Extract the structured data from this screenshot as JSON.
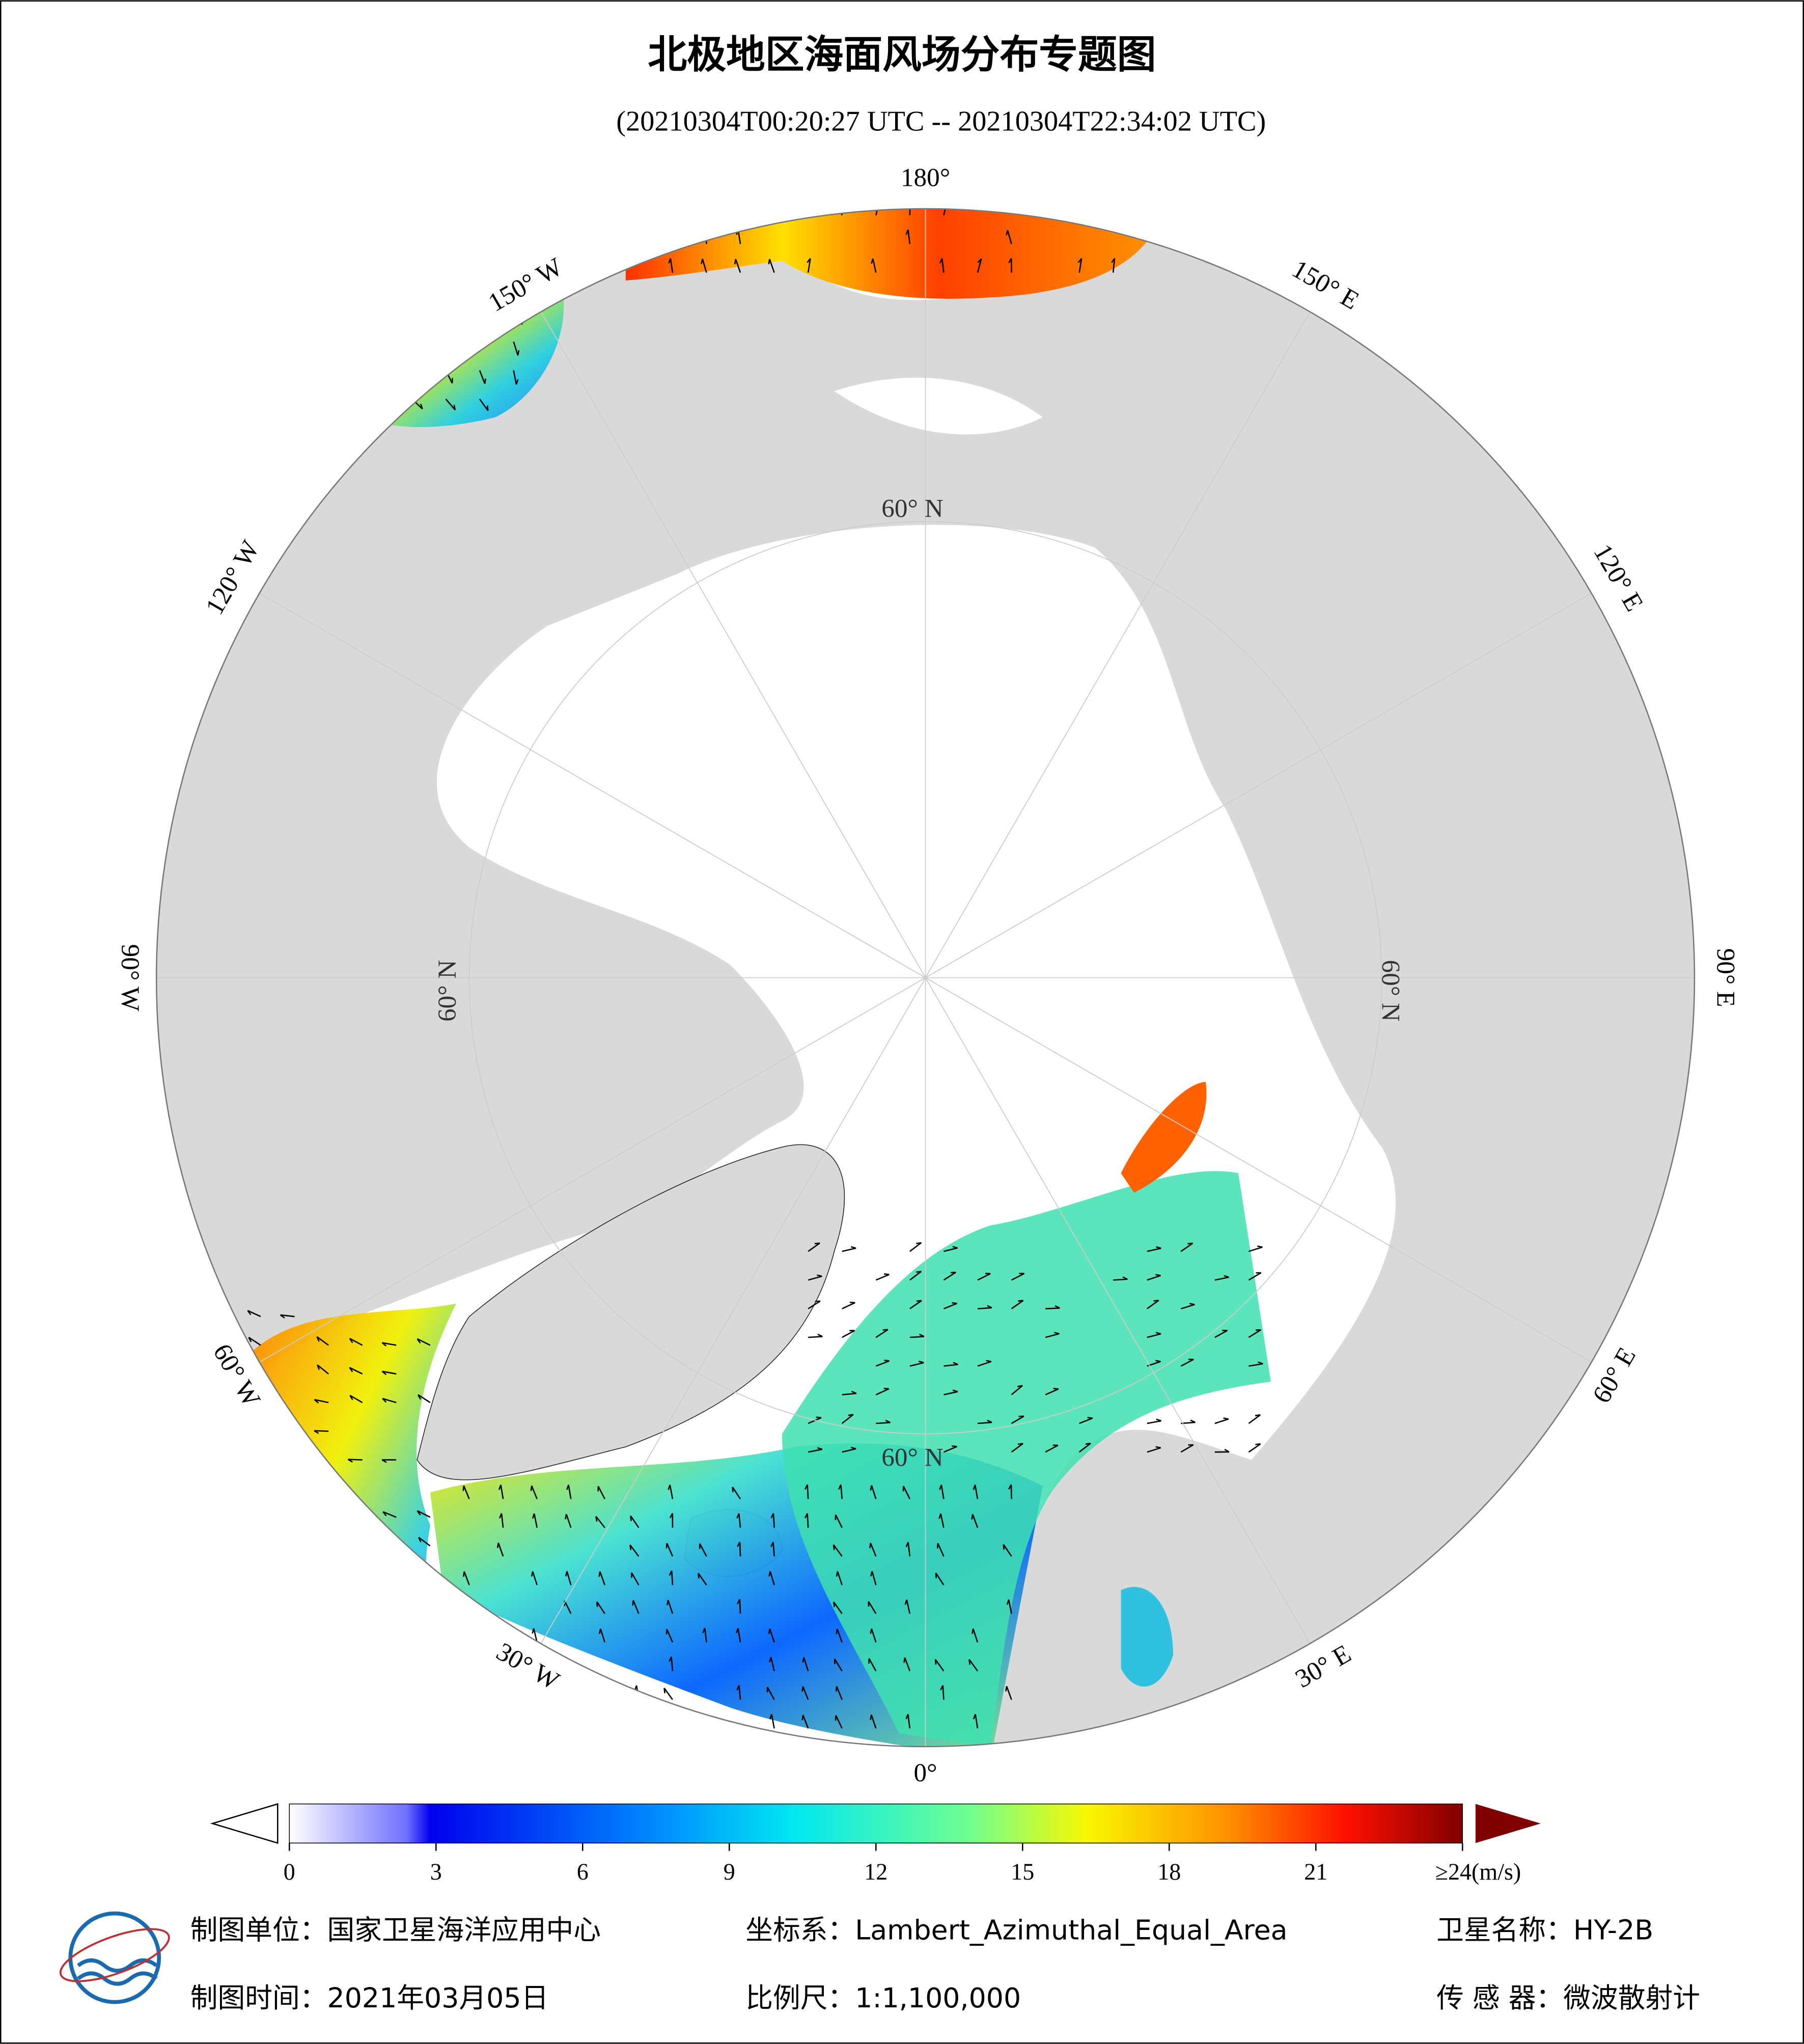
{
  "header": {
    "title": "北极地区海面风场分布专题图",
    "subtitle": "(20210304T00:20:27 UTC -- 20210304T22:34:02 UTC)"
  },
  "map": {
    "lon_labels": [
      "0°",
      "30° E",
      "60° E",
      "90° E",
      "120° E",
      "150° E",
      "180°",
      "150° W",
      "120° W",
      "90° W",
      "60° W",
      "30° W"
    ],
    "lat_labels": [
      "60° N",
      "60° N",
      "60° N",
      "60° N"
    ]
  },
  "colorbar": {
    "ticks": [
      0,
      3,
      6,
      9,
      12,
      15,
      18,
      21,
      {
        "value": 24,
        "label": "≥24(m/s)"
      }
    ],
    "lim": [
      0,
      24
    ]
  },
  "footer": {
    "unit": "制图单位：国家卫星海洋应用中心",
    "crs": "坐标系：Lambert_Azimuthal_Equal_Area",
    "satellite": "卫星名称：HY-2B",
    "date": "制图时间：2021年03月05日",
    "scale": "比例尺：1:1,100,000",
    "sensor": "传 感 器：微波散射计"
  }
}
